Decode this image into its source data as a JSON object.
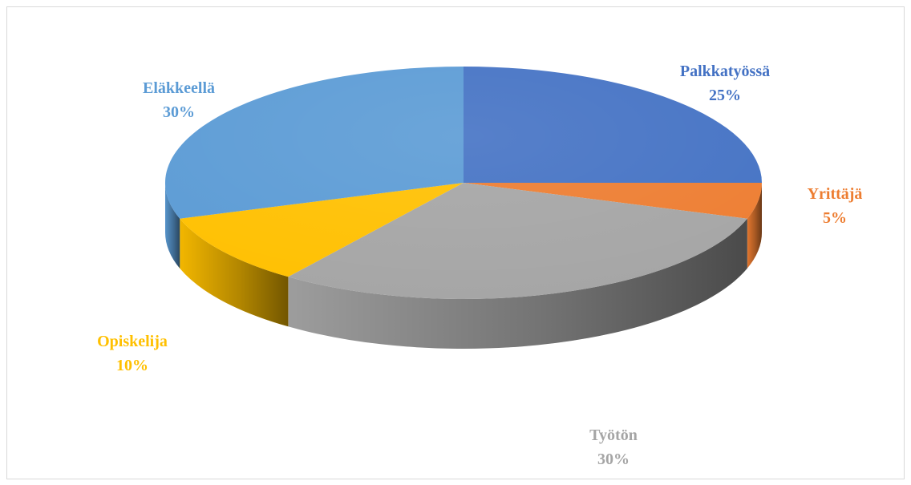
{
  "chart_data": {
    "type": "pie",
    "style": "3d",
    "categories": [
      "Palkkatyössä",
      "Yrittäjä",
      "Työtön",
      "Opiskelija",
      "Eläkkeellä"
    ],
    "values": [
      25,
      5,
      30,
      10,
      30
    ],
    "value_labels": [
      "25%",
      "5%",
      "30%",
      "10%",
      "30%"
    ],
    "colors": [
      "#4472C4",
      "#ED7D31",
      "#A5A5A5",
      "#FFC000",
      "#5B9BD5"
    ],
    "label_colors": [
      "#4472C4",
      "#ED7D31",
      "#A5A5A5",
      "#FFC000",
      "#5B9BD5"
    ],
    "legend": "none",
    "data_labels": "outside, category name and percentage"
  }
}
